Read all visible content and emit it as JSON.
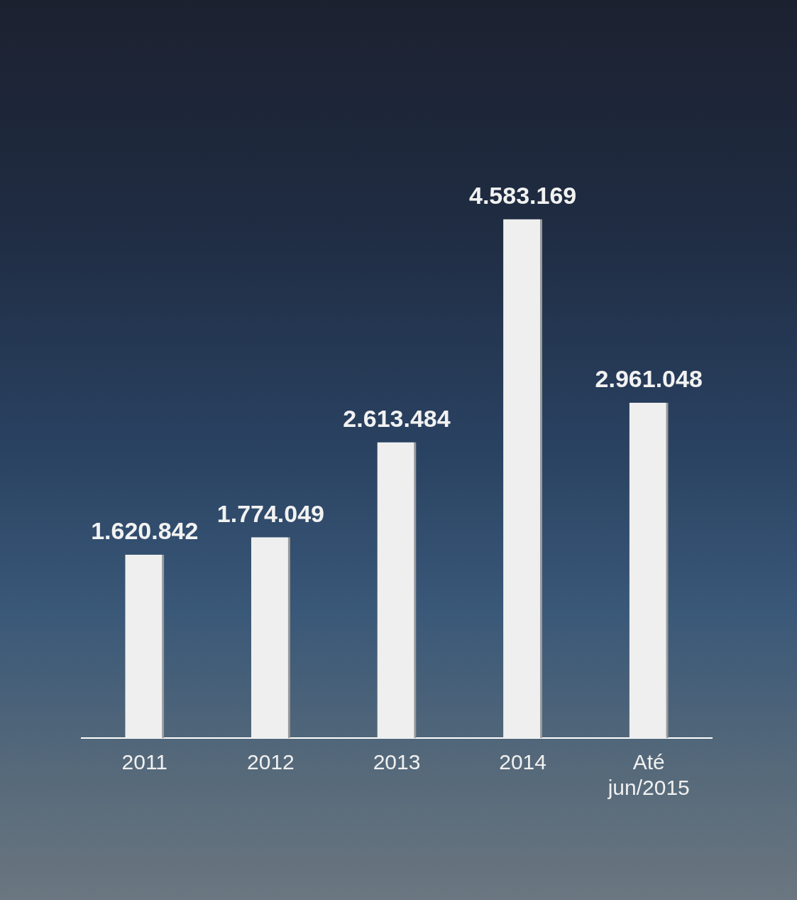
{
  "chart_data": {
    "type": "bar",
    "categories": [
      "2011",
      "2012",
      "2013",
      "2014",
      "Até jun/2015"
    ],
    "values": [
      1620842,
      1774049,
      2613484,
      4583169,
      2961048
    ],
    "value_labels": [
      "1.620.842",
      "1.774.049",
      "2.613.484",
      "4.583.169",
      "2.961.048"
    ],
    "color": "#efefef",
    "ylim": [
      0,
      5000000
    ],
    "grid": false,
    "data_labels": true,
    "tick_labels": "x"
  }
}
